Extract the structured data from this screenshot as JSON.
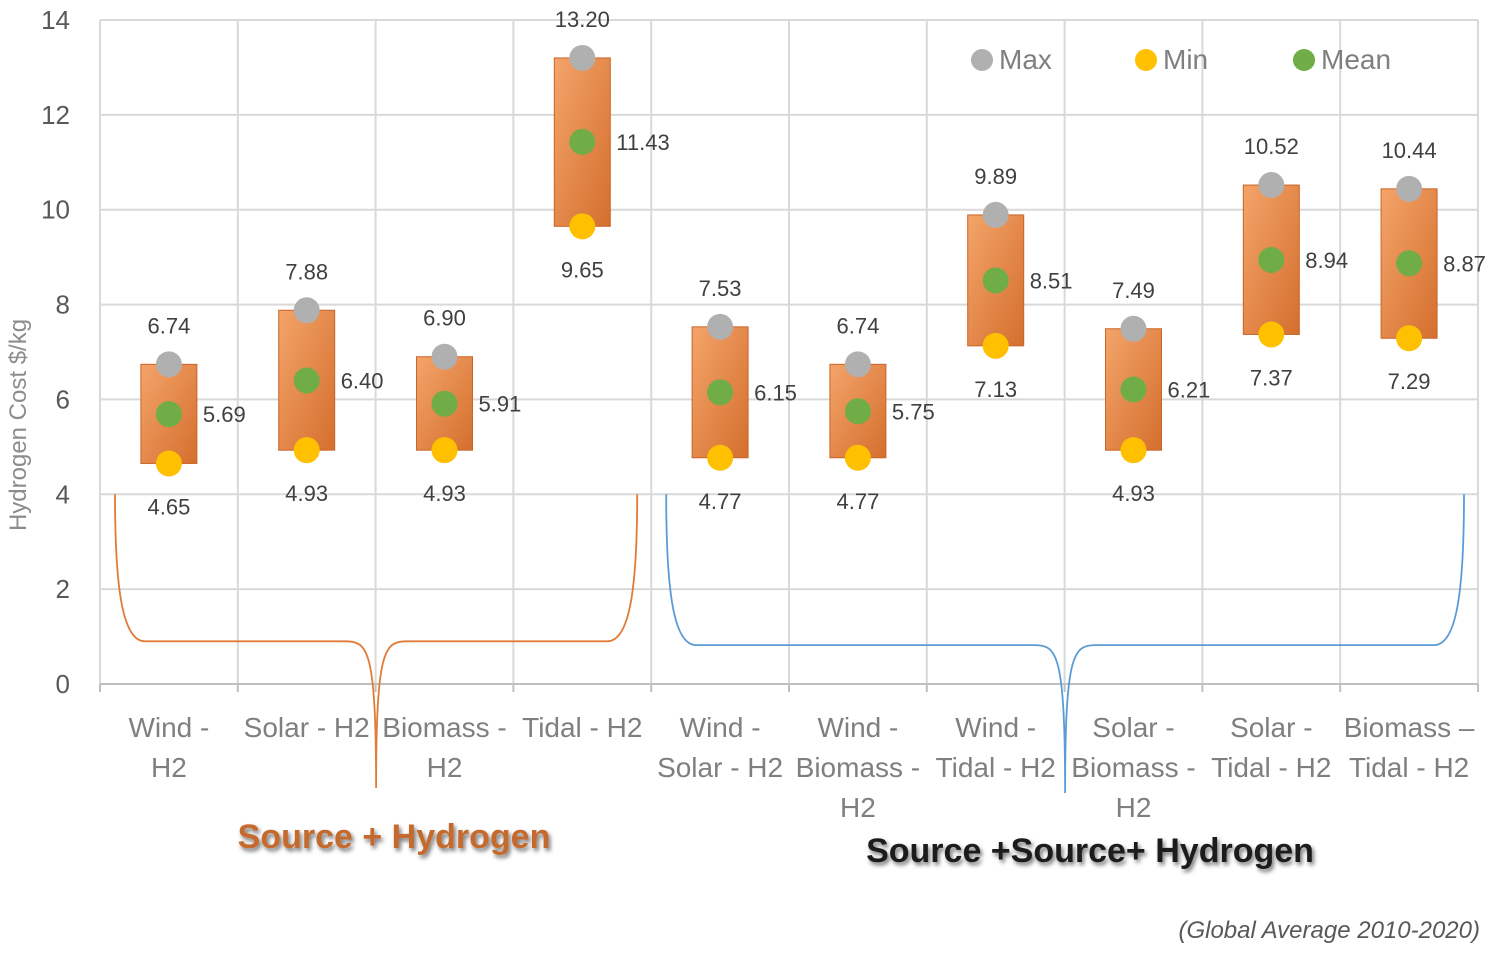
{
  "chart_data": {
    "type": "floating-bar",
    "ylabel": "Hydrogen Cost $/kg",
    "ylim": [
      0,
      14
    ],
    "yticks": [
      "0",
      "2",
      "4",
      "6",
      "8",
      "10",
      "12",
      "14"
    ],
    "grid": true,
    "legend_position": "top-right",
    "categories": [
      [
        "Wind  -",
        "H2"
      ],
      [
        "Solar - H2"
      ],
      [
        "Biomass -",
        "H2"
      ],
      [
        "Tidal - H2"
      ],
      [
        "Wind  -",
        "Solar - H2"
      ],
      [
        "Wind  -",
        "Biomass -",
        "H2"
      ],
      [
        "Wind  -",
        "Tidal - H2"
      ],
      [
        "Solar -",
        "Biomass -",
        "H2"
      ],
      [
        "Solar -",
        "Tidal - H2"
      ],
      [
        "Biomass –",
        "Tidal - H2"
      ]
    ],
    "series": [
      {
        "name": "Max",
        "color": "#b0b0b0",
        "values": [
          6.74,
          7.88,
          6.9,
          13.2,
          7.53,
          6.74,
          9.89,
          7.49,
          10.52,
          10.44
        ],
        "labels": [
          "6.74",
          "7.88",
          "6.90",
          "13.20",
          "7.53",
          "6.74",
          "9.89",
          "7.49",
          "10.52",
          "10.44"
        ]
      },
      {
        "name": "Min",
        "color": "#ffc000",
        "values": [
          4.65,
          4.93,
          4.93,
          9.65,
          4.77,
          4.77,
          7.13,
          4.93,
          7.37,
          7.29
        ],
        "labels": [
          "4.65",
          "4.93",
          "4.93",
          "9.65",
          "4.77",
          "4.77",
          "7.13",
          "4.93",
          "7.37",
          "7.29"
        ]
      },
      {
        "name": "Mean",
        "color": "#70ad47",
        "values": [
          5.69,
          6.4,
          5.91,
          11.43,
          6.15,
          5.75,
          8.51,
          6.21,
          8.94,
          8.87
        ],
        "labels": [
          "5.69",
          "6.40",
          "5.91",
          "11.43",
          "6.15",
          "5.75",
          "8.51",
          "6.21",
          "8.94",
          "8.87"
        ]
      }
    ],
    "bar_color": "#e07b39",
    "groups": [
      {
        "label": "Source + Hydrogen",
        "from": 0,
        "to": 3,
        "color": "#e07b39"
      },
      {
        "label": "Source +Source+ Hydrogen",
        "from": 4,
        "to": 9,
        "color": "#5b9bd5"
      }
    ],
    "footnote": "(Global Average  2010-2020)"
  }
}
